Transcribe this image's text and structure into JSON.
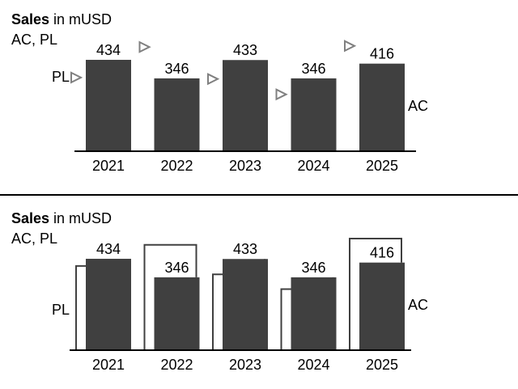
{
  "chart_data": [
    {
      "type": "bar",
      "title_bold": "Sales",
      "title_rest": " in mUSD",
      "subtitle": "AC, PL",
      "categories": [
        "2021",
        "2022",
        "2023",
        "2024",
        "2025"
      ],
      "series": [
        {
          "name": "AC",
          "values": [
            434,
            346,
            433,
            346,
            416
          ],
          "color": "#404040"
        },
        {
          "name": "PL",
          "values": [
            350,
            495,
            343,
            270,
            500
          ],
          "color": "#808080"
        }
      ],
      "data_labels": [
        "434",
        "346",
        "433",
        "346",
        "416"
      ],
      "ac_label": "AC",
      "pl_label": "PL",
      "pl_marker": "triangle",
      "ylim": [
        0,
        560
      ]
    },
    {
      "type": "bar",
      "title_bold": "Sales",
      "title_rest": " in mUSD",
      "subtitle": "AC, PL",
      "categories": [
        "2021",
        "2022",
        "2023",
        "2024",
        "2025"
      ],
      "series": [
        {
          "name": "AC",
          "values": [
            434,
            346,
            433,
            346,
            416
          ],
          "color": "#404040"
        },
        {
          "name": "PL",
          "values": [
            400,
            500,
            360,
            290,
            530
          ],
          "color": "#404040"
        }
      ],
      "data_labels": [
        "434",
        "346",
        "433",
        "346",
        "416"
      ],
      "ac_label": "AC",
      "pl_label": "PL",
      "pl_marker": "outline",
      "ylim": [
        0,
        560
      ]
    }
  ]
}
